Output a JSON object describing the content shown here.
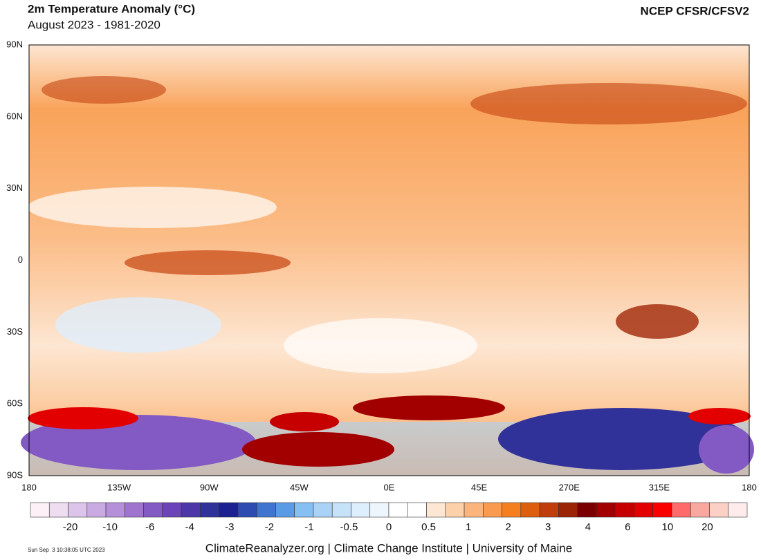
{
  "header": {
    "title": "2m Temperature Anomaly (°C)",
    "subtitle": "August 2023 - 1981-2020",
    "source": "NCEP CFSR/CFSV2"
  },
  "map": {
    "lat_labels": [
      "90N",
      "60N",
      "30N",
      "0",
      "30S",
      "60S",
      "90S"
    ],
    "lon_labels": [
      "180",
      "135W",
      "90W",
      "45W",
      "0E",
      "45E",
      "270E",
      "315E",
      "180"
    ]
  },
  "colorbar": {
    "colors": [
      "#fdf0f6",
      "#eedcf0",
      "#dcc4ea",
      "#c9aae2",
      "#b58fda",
      "#9f74d0",
      "#8359c4",
      "#6a44b8",
      "#4d37a8",
      "#31319a",
      "#1c2090",
      "#2d4bb0",
      "#3f74cf",
      "#5a9be6",
      "#86bff2",
      "#a9d2f6",
      "#c6e2f9",
      "#ddeefc",
      "#eef6fd",
      "#ffffff",
      "#ffffff",
      "#fde6d2",
      "#fcd0a8",
      "#fbb57c",
      "#f99a4e",
      "#f57f1e",
      "#dd5f0e",
      "#bf3e0c",
      "#9b2406",
      "#7a0000",
      "#a20000",
      "#c60000",
      "#e20000",
      "#fa0000",
      "#ff6a6a",
      "#f9a8a0",
      "#fcd0c4",
      "#fdeceb"
    ],
    "labels": [
      -20,
      -10,
      -6,
      -4,
      -3,
      -2,
      -1,
      -0.5,
      0,
      0.5,
      1,
      2,
      3,
      4,
      6,
      10,
      20
    ]
  },
  "footer": {
    "credit": "ClimateReanalyzer.org | Climate Change Institute | University of Maine",
    "timestamp": "Sun Sep  3 10:38:05 UTC 2023"
  }
}
